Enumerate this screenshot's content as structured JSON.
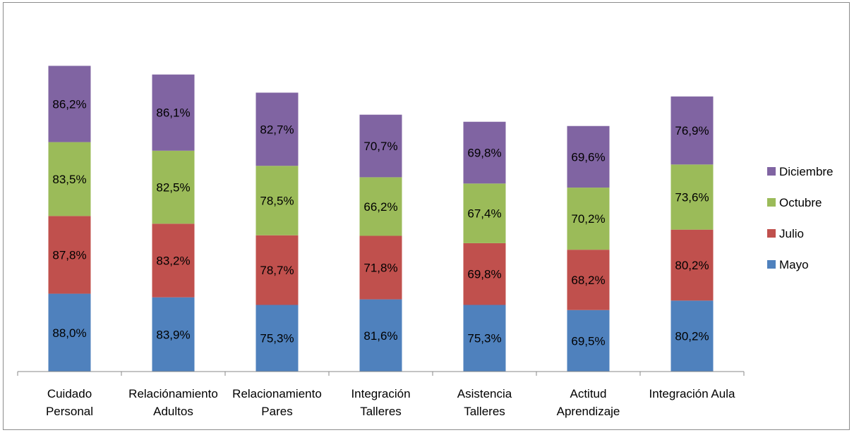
{
  "chart_data": {
    "type": "bar",
    "stacked": true,
    "categories": [
      [
        "Cuidado",
        "Personal"
      ],
      [
        "Relaciónamiento",
        "Adultos"
      ],
      [
        "Relacionamiento",
        "Pares"
      ],
      [
        "Integración",
        "Talleres"
      ],
      [
        "Asistencia",
        "Talleres"
      ],
      [
        "Actitud",
        "Aprendizaje"
      ],
      [
        "Integración Aula"
      ]
    ],
    "series": [
      {
        "name": "Mayo",
        "color": "#4f81bd",
        "values": [
          88.0,
          83.9,
          75.3,
          81.6,
          75.3,
          69.5,
          80.2
        ],
        "labels": [
          "88,0%",
          "83,9%",
          "75,3%",
          "81,6%",
          "75,3%",
          "69,5%",
          "80,2%"
        ]
      },
      {
        "name": "Julio",
        "color": "#c0504d",
        "values": [
          87.8,
          83.2,
          78.7,
          71.8,
          69.8,
          68.2,
          80.2
        ],
        "labels": [
          "87,8%",
          "83,2%",
          "78,7%",
          "71,8%",
          "69,8%",
          "68,2%",
          "80,2%"
        ]
      },
      {
        "name": "Octubre",
        "color": "#9bbb59",
        "values": [
          83.5,
          82.5,
          78.5,
          66.2,
          67.4,
          70.2,
          73.6
        ],
        "labels": [
          "83,5%",
          "82,5%",
          "78,5%",
          "66,2%",
          "67,4%",
          "70,2%",
          "73,6%"
        ]
      },
      {
        "name": "Diciembre",
        "color": "#8064a2",
        "values": [
          86.2,
          86.1,
          82.7,
          70.7,
          69.8,
          69.6,
          76.9
        ],
        "labels": [
          "86,2%",
          "86,1%",
          "82,7%",
          "70,7%",
          "69,8%",
          "69,6%",
          "76,9%"
        ]
      }
    ],
    "legend": "right",
    "grid": false,
    "ylim": [
      0,
      350
    ]
  }
}
